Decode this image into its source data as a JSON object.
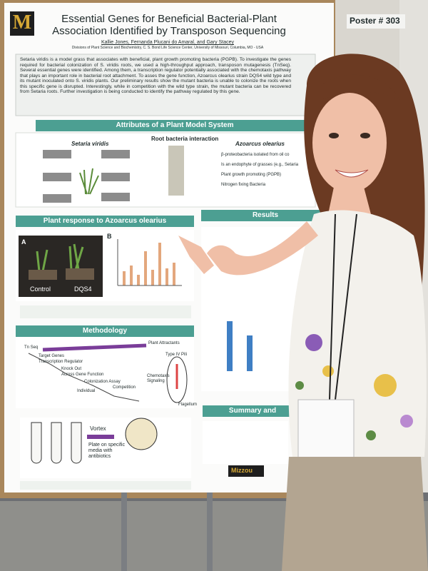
{
  "poster": {
    "number": "Poster # 303",
    "logo": "M",
    "title": "Essential Genes for Beneficial Bacterial-Plant Association Identified by Transposon Sequencing",
    "authors": "Kallie Jones, Fernanda Plucani do Amaral, and Gary Stacey",
    "affiliation": "Divisions of Plant Science and Biochemistry, C. S. Bond Life Science Center, University of Missouri, Columbia, MO - USA",
    "abstract": "Setaria viridis is a model grass that associates with beneficial, plant growth promoting bacteria (PGPB). To investigate the genes required for bacterial colonization of S. viridis roots, we used a high-throughput approach, transposon mutagenesis (TnSeq). Several essential genes were identified. Among them, a transcription regulator potentially associated with the chemotaxis pathway that plays an important role in bacterial root attachment. To asses the gene function, Azoarcus olearius strain DQS4 wild type and its mutant inoculated onto S. viridis plants. Our preliminary results show the mutant bacteria is unable to colonize the roots when this specific gene is disrupted. Interestingly, while in competition with the wild type strain, the mutant bacteria can be recovered from Setaria roots. Further investigation is being conducted to identify the pathway regulated by this gene.",
    "attributes": {
      "heading": "Attributes of a Plant Model System",
      "left": "Setaria viridis",
      "middle": "Root bacteria interaction",
      "right": "Azoarcus olearius",
      "bullets": [
        "β-proteobacteria isolated from oil co",
        "Is an endophyte of grasses (e.g., Setaria",
        "Plant growth promoting (PGPB)",
        "Nitrogen fixing Bacteria"
      ]
    },
    "plant_response": {
      "heading": "Plant response to Azoarcus olearius",
      "panel_a": "A",
      "panel_b": "B",
      "control": "Control",
      "mutant": "DQS4"
    },
    "results": {
      "heading": "Results"
    },
    "methodology": {
      "heading": "Methodology",
      "flow": [
        "Tn Seq",
        "Target Genes",
        "Transcription Regulator",
        "Knock Out",
        "Across Gene Function",
        "Colonization Assay",
        "Individual",
        "Competition"
      ],
      "plant_attractants": "Plant Attractants",
      "pili": "Type IV Pili",
      "chemotaxis": "Chemotaxis Signaling",
      "flagellum": "Flagellum",
      "vortex": "Vortex",
      "plate": "Plate on specific media with antibiotics"
    },
    "summary": {
      "heading": "Summary and"
    },
    "footer_logo": "Mizzou"
  }
}
